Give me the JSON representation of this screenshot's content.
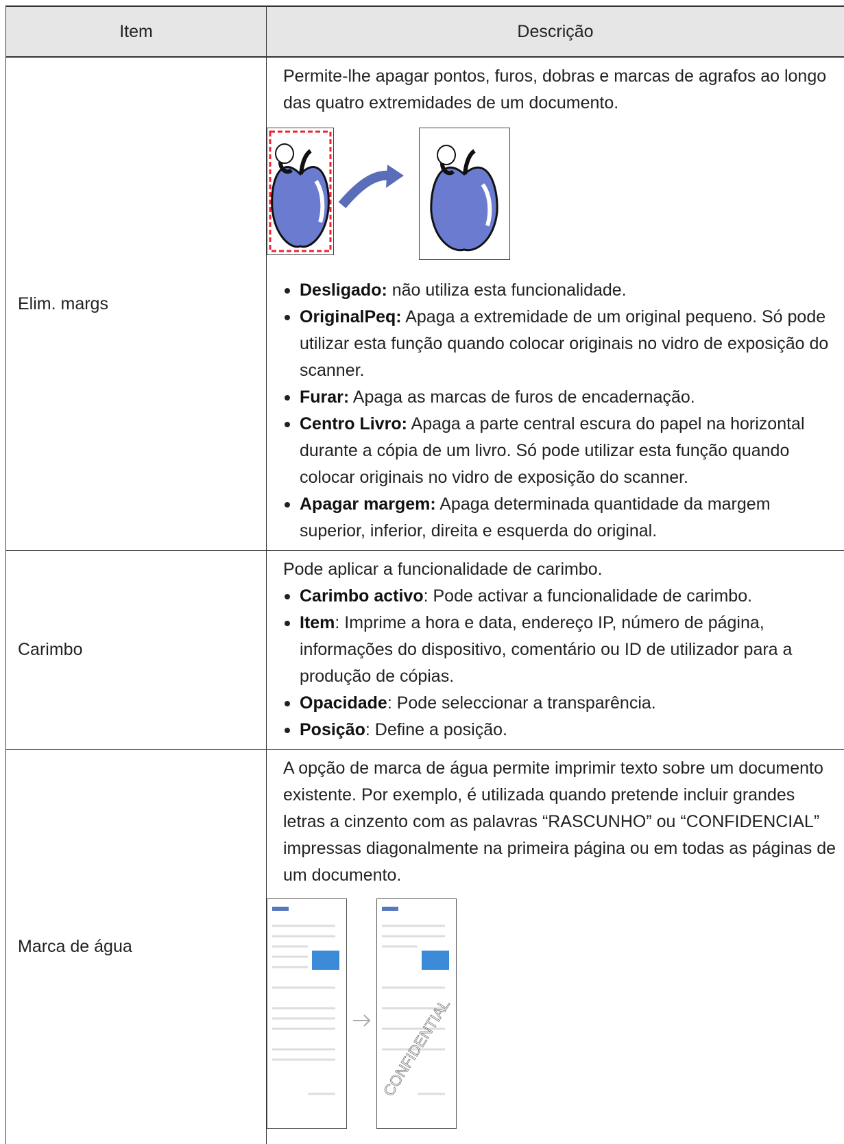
{
  "table": {
    "header": [
      "Item",
      "Descrição"
    ],
    "rows": [
      {
        "item": "Elim. margs",
        "intro": "Permite-lhe apagar pontos, furos, dobras e marcas de agrafos ao longo das quatro extremidades de um documento.",
        "bullets": [
          {
            "term": "Desligado:",
            "text": " não utiliza esta funcionalidade."
          },
          {
            "term": "OriginalPeq:",
            "text": " Apaga a extremidade de um original pequeno. Só pode utilizar esta função quando colocar originais no vidro de exposição do scanner."
          },
          {
            "term": "Furar:",
            "text": " Apaga as marcas de furos de encadernação."
          },
          {
            "term": "Centro Livro:",
            "text": " Apaga a parte central escura do papel na horizontal durante a cópia de um livro. Só pode utilizar esta função quando colocar originais no vidro de exposição do scanner."
          },
          {
            "term": "Apagar margem:",
            "text": " Apaga determinada quantidade da margem superior, inferior, direita e esquerda do original."
          }
        ]
      },
      {
        "item": "Carimbo",
        "intro": "Pode aplicar a funcionalidade de carimbo.",
        "bullets": [
          {
            "term": "Carimbo activo",
            "text": ": Pode activar a funcionalidade de carimbo."
          },
          {
            "term": "Item",
            "text": ": Imprime a hora e data, endereço IP, número de página, informações do dispositivo, comentário ou ID de utilizador para a produção de cópias."
          },
          {
            "term": "Opacidade",
            "text": ": Pode seleccionar a transparência."
          },
          {
            "term": "Posição",
            "text": ": Define a posição."
          }
        ]
      },
      {
        "item": "Marca de água",
        "intro": "A opção de marca de água permite imprimir texto sobre um documento existente. Por exemplo, é utilizada quando pretende incluir grandes letras a cinzento com as palavras “RASCUNHO” ou “CONFIDENCIAL” impressas diagonalmente na primeira página ou em todas as páginas de um documento.",
        "figure_text": "CONFIDENTIAL"
      }
    ]
  }
}
